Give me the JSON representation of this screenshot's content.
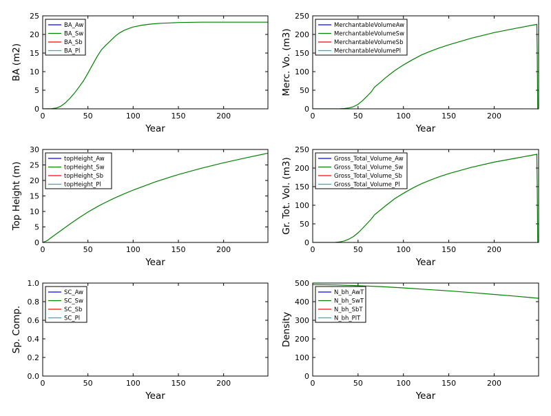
{
  "colors": {
    "Aw": "#0000ff",
    "Sw": "#008000",
    "Sb": "#ff0000",
    "Pl": "#00bfbf"
  },
  "chart_data": [
    {
      "type": "line",
      "xlabel": "Year",
      "ylabel": "BA (m2)",
      "xlim": [
        0,
        249
      ],
      "ylim": [
        0,
        25
      ],
      "xticks": [
        "0",
        "50",
        "100",
        "150",
        "200"
      ],
      "yticks": [
        "0",
        "5",
        "10",
        "15",
        "20",
        "25"
      ],
      "legend_position": "top-left",
      "series": [
        {
          "name": "BA_Aw",
          "color": "#0000ff",
          "x": [],
          "y": []
        },
        {
          "name": "BA_Sw",
          "color": "#008000",
          "x": [
            0,
            10,
            15,
            20,
            25,
            30,
            35,
            40,
            45,
            50,
            55,
            60,
            65,
            69,
            75,
            80,
            85,
            90,
            95,
            100,
            110,
            120,
            130,
            140,
            150,
            175,
            200,
            225,
            249
          ],
          "y": [
            0,
            0.05,
            0.2,
            0.7,
            1.6,
            2.8,
            4.2,
            5.8,
            7.5,
            9.6,
            11.8,
            14.0,
            15.9,
            16.9,
            18.3,
            19.5,
            20.4,
            21.1,
            21.6,
            22.0,
            22.5,
            22.8,
            23.0,
            23.1,
            23.2,
            23.3,
            23.3,
            23.3,
            23.3
          ]
        },
        {
          "name": "BA_Sb",
          "color": "#ff0000",
          "x": [],
          "y": []
        },
        {
          "name": "BA_Pl",
          "color": "#00bfbf",
          "x": [],
          "y": []
        }
      ]
    },
    {
      "type": "line",
      "xlabel": "Year",
      "ylabel": "Merc. Vo. (m3)",
      "xlim": [
        0,
        249
      ],
      "ylim": [
        0,
        250
      ],
      "xticks": [
        "0",
        "50",
        "100",
        "150",
        "200"
      ],
      "yticks": [
        "0",
        "50",
        "100",
        "150",
        "200",
        "250"
      ],
      "legend_position": "top-left",
      "series": [
        {
          "name": "MerchantableVolumeAw",
          "color": "#0000ff",
          "x": [],
          "y": []
        },
        {
          "name": "MerchantableVolumeSw",
          "color": "#008000",
          "x": [
            0,
            30,
            35,
            40,
            45,
            50,
            55,
            60,
            65,
            68,
            75,
            80,
            90,
            100,
            110,
            120,
            130,
            140,
            150,
            175,
            200,
            225,
            247,
            247.5,
            248
          ],
          "y": [
            0,
            0.3,
            1,
            2.5,
            6,
            12,
            22,
            34,
            47,
            58,
            72,
            83,
            102,
            118,
            132,
            145,
            155,
            164,
            172,
            190,
            205,
            217,
            227,
            150,
            0
          ]
        },
        {
          "name": "MerchantableVolumeSb",
          "color": "#ff0000",
          "x": [],
          "y": []
        },
        {
          "name": "MerchantableVolumePl",
          "color": "#00bfbf",
          "x": [],
          "y": []
        }
      ]
    },
    {
      "type": "line",
      "xlabel": "Year",
      "ylabel": "Top Height (m)",
      "xlim": [
        0,
        249
      ],
      "ylim": [
        0,
        30
      ],
      "xticks": [
        "0",
        "50",
        "100",
        "150",
        "200"
      ],
      "yticks": [
        "0",
        "5",
        "10",
        "15",
        "20",
        "25",
        "30"
      ],
      "legend_position": "top-left",
      "series": [
        {
          "name": "topHeight_Aw",
          "color": "#0000ff",
          "x": [],
          "y": []
        },
        {
          "name": "topHeight_Sw",
          "color": "#008000",
          "x": [
            0,
            5,
            10,
            20,
            30,
            40,
            50,
            60,
            70,
            80,
            90,
            100,
            125,
            150,
            175,
            200,
            225,
            249
          ],
          "y": [
            0,
            0.6,
            1.7,
            3.8,
            5.9,
            7.9,
            9.8,
            11.5,
            13.0,
            14.4,
            15.7,
            16.9,
            19.6,
            21.9,
            23.9,
            25.7,
            27.3,
            28.8
          ]
        },
        {
          "name": "topHeight_Sb",
          "color": "#ff0000",
          "x": [],
          "y": []
        },
        {
          "name": "topHeight_Pl",
          "color": "#00bfbf",
          "x": [],
          "y": []
        }
      ]
    },
    {
      "type": "line",
      "xlabel": "Year",
      "ylabel": "Gr. Tot. Vol. (m3)",
      "xlim": [
        0,
        249
      ],
      "ylim": [
        0,
        250
      ],
      "xticks": [
        "0",
        "50",
        "100",
        "150",
        "200"
      ],
      "yticks": [
        "0",
        "50",
        "100",
        "150",
        "200",
        "250"
      ],
      "legend_position": "top-left",
      "series": [
        {
          "name": "Gross_Total_Volume_Aw",
          "color": "#0000ff",
          "x": [],
          "y": []
        },
        {
          "name": "Gross_Total_Volume_Sw",
          "color": "#008000",
          "x": [
            0,
            25,
            30,
            35,
            40,
            45,
            50,
            55,
            60,
            65,
            68,
            75,
            80,
            90,
            100,
            110,
            120,
            130,
            140,
            150,
            175,
            200,
            225,
            247,
            247.5,
            248
          ],
          "y": [
            0,
            0.3,
            1.5,
            4,
            9,
            16,
            26,
            38,
            51,
            64,
            74,
            88,
            98,
            117,
            132,
            146,
            158,
            168,
            177,
            185,
            202,
            216,
            227,
            237,
            150,
            0
          ]
        },
        {
          "name": "Gross_Total_Volume_Sb",
          "color": "#ff0000",
          "x": [],
          "y": []
        },
        {
          "name": "Gross_Total_Volume_Pl",
          "color": "#00bfbf",
          "x": [],
          "y": []
        }
      ]
    },
    {
      "type": "line",
      "xlabel": "Year",
      "ylabel": "Sp. Comp.",
      "xlim": [
        0,
        249
      ],
      "ylim": [
        0,
        1
      ],
      "xticks": [
        "0",
        "50",
        "100",
        "150",
        "200"
      ],
      "yticks": [
        "0.0",
        "0.2",
        "0.4",
        "0.6",
        "0.8",
        "1.0"
      ],
      "legend_position": "top-left",
      "series": [
        {
          "name": "SC_Aw",
          "color": "#0000ff",
          "x": [],
          "y": []
        },
        {
          "name": "SC_Sw",
          "color": "#008000",
          "x": [],
          "y": []
        },
        {
          "name": "SC_Sb",
          "color": "#ff0000",
          "x": [],
          "y": []
        },
        {
          "name": "SC_Pl",
          "color": "#00bfbf",
          "x": [],
          "y": []
        }
      ]
    },
    {
      "type": "line",
      "xlabel": "Year",
      "ylabel": "Density",
      "xlim": [
        0,
        249
      ],
      "ylim": [
        0,
        500
      ],
      "xticks": [
        "0",
        "50",
        "100",
        "150",
        "200"
      ],
      "yticks": [
        "0",
        "100",
        "200",
        "300",
        "400",
        "500"
      ],
      "legend_position": "top-left",
      "series": [
        {
          "name": "N_bh_AwT",
          "color": "#0000ff",
          "x": [],
          "y": []
        },
        {
          "name": "N_bh_SwT",
          "color": "#008000",
          "x": [
            0,
            25,
            50,
            75,
            100,
            125,
            150,
            175,
            200,
            225,
            249
          ],
          "y": [
            492,
            490,
            486,
            481,
            474,
            466,
            458,
            449,
            439,
            429,
            418
          ]
        },
        {
          "name": "N_bh_SbT",
          "color": "#ff0000",
          "x": [],
          "y": []
        },
        {
          "name": "N_bh_PlT",
          "color": "#00bfbf",
          "x": [],
          "y": []
        }
      ]
    }
  ]
}
